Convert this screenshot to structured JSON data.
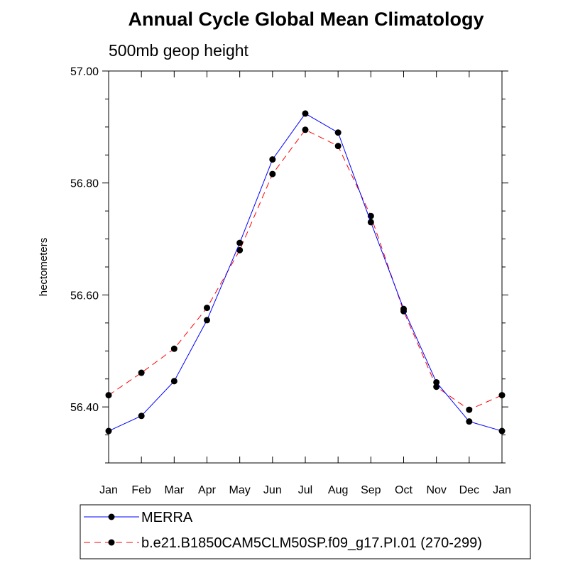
{
  "chart_data": {
    "type": "line",
    "title": "Annual Cycle Global Mean Climatology",
    "subtitle": "500mb geop height",
    "ylabel": "hectometers",
    "xlabel": "",
    "categories": [
      "Jan",
      "Feb",
      "Mar",
      "Apr",
      "May",
      "Jun",
      "Jul",
      "Aug",
      "Sep",
      "Oct",
      "Nov",
      "Dec",
      "Jan"
    ],
    "ylim": [
      56.3,
      57.0
    ],
    "yticks_major": [
      56.4,
      56.6,
      56.8,
      57.0
    ],
    "ytick_labels": [
      "56.40",
      "56.60",
      "56.80",
      "57.00"
    ],
    "yticks_minor": [
      56.3,
      56.35,
      56.45,
      56.5,
      56.55,
      56.65,
      56.7,
      56.75,
      56.85,
      56.9,
      56.95
    ],
    "grid": false,
    "legend_position": "bottom",
    "series": [
      {
        "name": "MERRA",
        "color": "#0000ff",
        "dash": "solid",
        "values": [
          56.357,
          56.384,
          56.446,
          56.555,
          56.693,
          56.842,
          56.924,
          56.89,
          56.73,
          56.575,
          56.444,
          56.374,
          56.357
        ]
      },
      {
        "name": "b.e21.B1850CAM5CLM50SP.f09_g17.PI.01 (270-299)",
        "color": "#ff0000",
        "dash": "dashed",
        "values": [
          56.421,
          56.461,
          56.504,
          56.577,
          56.68,
          56.816,
          56.895,
          56.866,
          56.741,
          56.571,
          56.436,
          56.395,
          56.421
        ]
      }
    ]
  }
}
